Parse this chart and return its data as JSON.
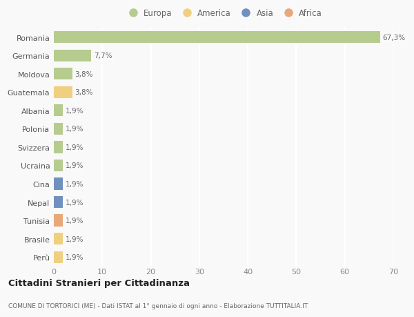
{
  "countries": [
    "Romania",
    "Germania",
    "Moldova",
    "Guatemala",
    "Albania",
    "Polonia",
    "Svizzera",
    "Ucraina",
    "Cina",
    "Nepal",
    "Tunisia",
    "Brasile",
    "Perù"
  ],
  "values": [
    67.3,
    7.7,
    3.8,
    3.8,
    1.9,
    1.9,
    1.9,
    1.9,
    1.9,
    1.9,
    1.9,
    1.9,
    1.9
  ],
  "labels": [
    "67,3%",
    "7,7%",
    "3,8%",
    "3,8%",
    "1,9%",
    "1,9%",
    "1,9%",
    "1,9%",
    "1,9%",
    "1,9%",
    "1,9%",
    "1,9%",
    "1,9%"
  ],
  "continents": [
    "Europa",
    "Europa",
    "Europa",
    "America",
    "Europa",
    "Europa",
    "Europa",
    "Europa",
    "Asia",
    "Asia",
    "Africa",
    "America",
    "America"
  ],
  "continent_colors": {
    "Europa": "#b5cc8e",
    "America": "#f0d080",
    "Asia": "#7090c0",
    "Africa": "#e8a878"
  },
  "legend_order": [
    "Europa",
    "America",
    "Asia",
    "Africa"
  ],
  "title": "Cittadini Stranieri per Cittadinanza",
  "subtitle": "COMUNE DI TORTORICI (ME) - Dati ISTAT al 1° gennaio di ogni anno - Elaborazione TUTTITALIA.IT",
  "xlim": [
    0,
    70
  ],
  "xticks": [
    0,
    10,
    20,
    30,
    40,
    50,
    60,
    70
  ],
  "bg_color": "#f9f9f9",
  "grid_color": "#e8e8e8",
  "bar_height": 0.65
}
